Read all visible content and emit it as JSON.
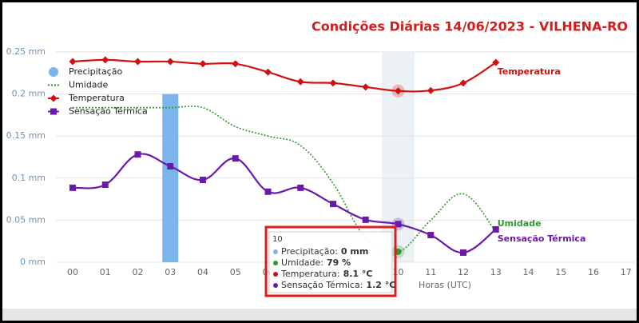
{
  "chart_data": {
    "type": "combo",
    "title": "Condições Diárias 14/06/2023 - VILHENA-RO",
    "x_label": "Horas (UTC)",
    "categories": [
      "00",
      "01",
      "02",
      "03",
      "04",
      "05",
      "06",
      "07",
      "08",
      "09",
      "10",
      "11",
      "12",
      "13",
      "14",
      "15",
      "16",
      "17"
    ],
    "ylim": [
      0,
      0.25
    ],
    "yticks": [
      {
        "value": 0,
        "label": "0 mm"
      },
      {
        "value": 0.05,
        "label": "0.05 mm"
      },
      {
        "value": 0.1,
        "label": "0.1 mm"
      },
      {
        "value": 0.15,
        "label": "0.15 mm"
      },
      {
        "value": 0.2,
        "label": "0.2 mm"
      },
      {
        "value": 0.25,
        "label": "0.25 mm"
      }
    ],
    "grid": true,
    "legend": "top-left",
    "highlight_category": 10,
    "series": [
      {
        "name": "Precipitação",
        "type": "bar",
        "color": "#7cb5ec",
        "values": [
          0,
          0,
          0,
          0.2,
          0,
          0,
          0,
          0,
          0,
          0,
          0,
          0,
          0,
          0,
          null,
          null,
          null,
          null
        ]
      },
      {
        "name": "Umidade",
        "type": "line",
        "dash": "dotted",
        "color": "#2a9a2a",
        "ylim": [
          78,
          98
        ],
        "end_label": "Umidade",
        "values": [
          92.7,
          92.7,
          92.7,
          92.7,
          92.7,
          90.9,
          90.0,
          89.1,
          85.5,
          80.3,
          79,
          82.0,
          84.5,
          80.9,
          null,
          null,
          null,
          null
        ]
      },
      {
        "name": "Temperatura",
        "type": "line",
        "marker": "diamond",
        "color": "#d40f0f",
        "ylim": [
          -31,
          17
        ],
        "end_label": "Temperatura",
        "values": [
          14.8,
          15.2,
          14.8,
          14.8,
          14.3,
          14.3,
          12.4,
          10.2,
          9.9,
          9.0,
          8.1,
          8.2,
          9.9,
          14.6,
          null,
          null,
          null,
          null
        ]
      },
      {
        "name": "Sensação Térmica",
        "type": "line",
        "marker": "square",
        "color": "#6a1aa8",
        "ylim": [
          -7.5,
          40.5
        ],
        "end_label": "Sensação Térmica",
        "values": [
          9.5,
          10.2,
          17.1,
          14.4,
          11.3,
          16.2,
          8.6,
          9.5,
          5.8,
          2.2,
          1.2,
          -1.3,
          -5.3,
          -0.0,
          null,
          null,
          null,
          null
        ]
      }
    ],
    "tooltip": {
      "title": "10",
      "rows": [
        {
          "label": "Precipitação:",
          "value": "0 mm"
        },
        {
          "label": "Umidade:",
          "value": "79 %"
        },
        {
          "label": "Temperatura:",
          "value": "8.1 °C"
        },
        {
          "label": "Sensação Térmica:",
          "value": "1.2 °C"
        }
      ]
    }
  }
}
